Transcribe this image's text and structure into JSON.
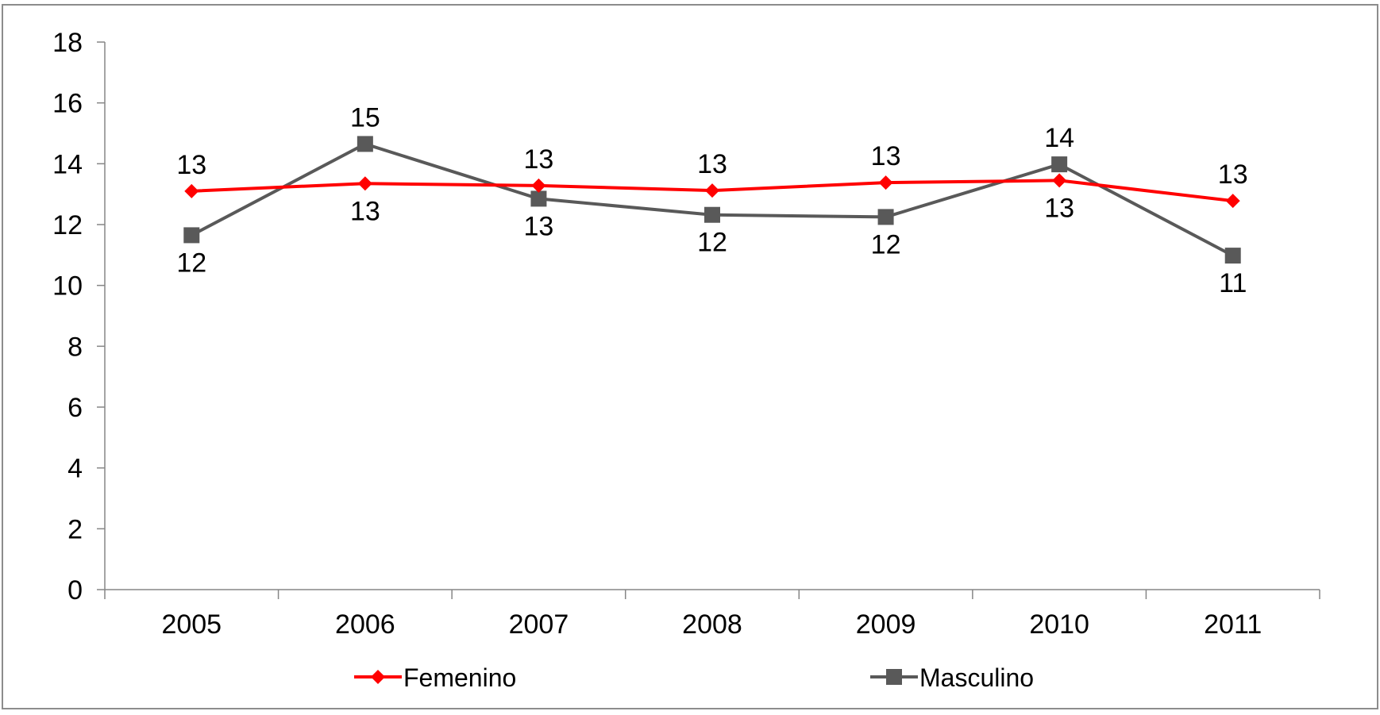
{
  "chart_data": {
    "type": "line",
    "title": "",
    "xlabel": "",
    "ylabel": "",
    "categories": [
      "2005",
      "2006",
      "2007",
      "2008",
      "2009",
      "2010",
      "2011"
    ],
    "y_ticks": [
      "0",
      "2",
      "4",
      "6",
      "8",
      "10",
      "12",
      "14",
      "16",
      "18"
    ],
    "ylim": [
      0,
      18
    ],
    "grid": false,
    "legend_position": "bottom",
    "series": [
      {
        "name": "Femenino",
        "color": "#ff0000",
        "marker": "diamond",
        "values": [
          13.1,
          13.35,
          13.28,
          13.12,
          13.38,
          13.45,
          12.78
        ],
        "labels": [
          "13",
          "13",
          "13",
          "13",
          "13",
          "13",
          "13"
        ],
        "label_placement": [
          "above",
          "below",
          "above",
          "above",
          "above",
          "below",
          "above"
        ]
      },
      {
        "name": "Masculino",
        "color": "#595959",
        "marker": "square",
        "values": [
          11.65,
          14.65,
          12.85,
          12.32,
          12.25,
          13.98,
          10.98
        ],
        "labels": [
          "12",
          "15",
          "13",
          "12",
          "12",
          "14",
          "11"
        ],
        "label_placement": [
          "below",
          "above",
          "below",
          "below",
          "below",
          "above",
          "below"
        ]
      }
    ]
  }
}
